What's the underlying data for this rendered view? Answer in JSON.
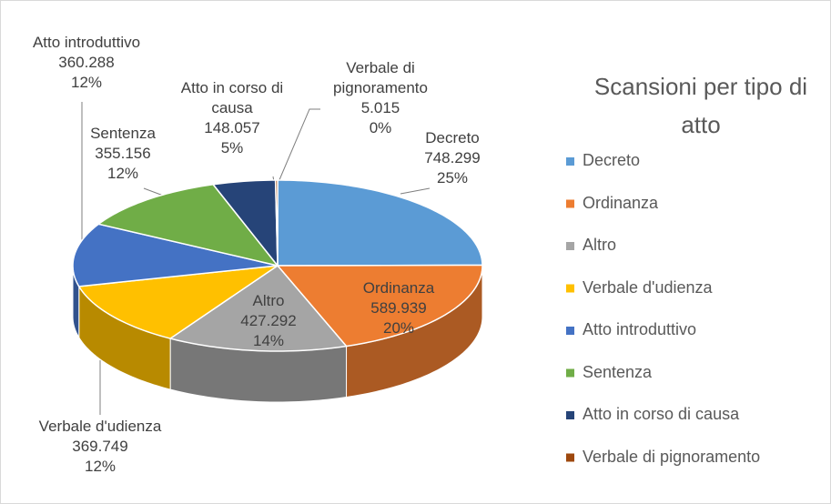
{
  "chart_data": {
    "type": "pie3d",
    "title": "Scansioni per tipo di atto",
    "categories": [
      "Decreto",
      "Ordinanza",
      "Altro",
      "Verbale d'udienza",
      "Atto introduttivo",
      "Sentenza",
      "Atto in corso di causa",
      "Verbale di pignoramento"
    ],
    "values": [
      748299,
      589939,
      427292,
      369749,
      360288,
      355156,
      148057,
      5015
    ],
    "value_labels": [
      "748.299",
      "589.939",
      "427.292",
      "369.749",
      "360.288",
      "355.156",
      "148.057",
      "5.015"
    ],
    "percent_labels": [
      "25%",
      "20%",
      "14%",
      "12%",
      "12%",
      "12%",
      "5%",
      "0%"
    ],
    "colors": [
      "#5b9bd5",
      "#ed7d31",
      "#a5a5a5",
      "#ffc000",
      "#4472c4",
      "#70ad47",
      "#264478",
      "#9e480e"
    ],
    "legend": "right"
  }
}
